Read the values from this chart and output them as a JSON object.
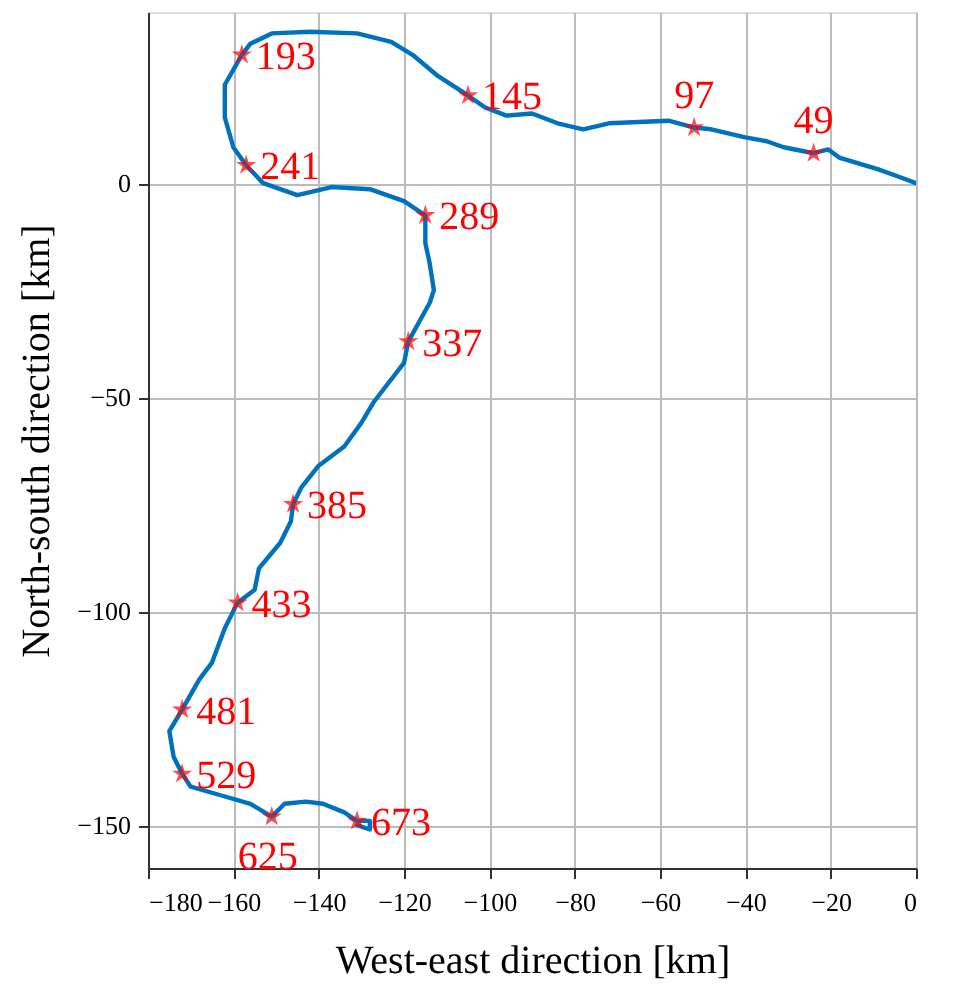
{
  "chart_data": {
    "type": "line",
    "xlabel": "West-east direction [km]",
    "ylabel": "North-south direction [km]",
    "xlim": [
      -180,
      0
    ],
    "xticks": [
      -180,
      -160,
      -140,
      -120,
      -100,
      -80,
      -60,
      -40,
      -20,
      0
    ],
    "ylim": [
      -160,
      40
    ],
    "yticks": [
      -150,
      -100,
      -50,
      0
    ],
    "grid": true,
    "series": [
      {
        "color": "#0072bd",
        "line_style": "solid",
        "marker": "none",
        "x": [
          0,
          -3.7,
          -9,
          -18,
          -20.6,
          -24,
          -31,
          -35,
          -40,
          -48,
          -52,
          -58,
          -72,
          -78,
          -84,
          -90,
          -96,
          -101,
          -105,
          -112,
          -118,
          -123,
          -131,
          -142,
          -151,
          -156,
          -158,
          -162,
          -162,
          -160,
          -157,
          -153,
          -145,
          -137,
          -128,
          -120,
          -115,
          -115,
          -114,
          -113,
          -114,
          -119,
          -120,
          -127,
          -130,
          -134,
          -140,
          -144,
          -146,
          -146.5,
          -149,
          -154,
          -155,
          -159,
          -162,
          -165,
          -168,
          -172,
          -175,
          -174,
          -172,
          -170,
          -163,
          -156,
          -151,
          -148,
          -143,
          -139,
          -134,
          -131,
          -128,
          -128,
          -131
        ],
        "values": [
          0,
          1.4,
          3.3,
          6,
          7.9,
          7,
          8.4,
          9.8,
          10.7,
          12.6,
          13,
          14.6,
          14,
          12.6,
          14,
          16.3,
          15.8,
          17.7,
          20.5,
          25,
          30,
          33,
          35,
          35.4,
          35,
          32.6,
          30,
          23,
          15.4,
          8.4,
          4.2,
          0,
          -2.8,
          -0.9,
          -1.4,
          -4.2,
          -7.5,
          -14,
          -18.6,
          -25,
          -28,
          -37,
          -42,
          -51,
          -56,
          -61.5,
          -66,
          -71,
          -75,
          -79,
          -84,
          -90,
          -95,
          -98,
          -104,
          -112,
          -116,
          -123,
          -128,
          -134,
          -138,
          -141,
          -143,
          -145,
          -148,
          -145,
          -144.5,
          -145,
          -147,
          -149,
          -149,
          -151,
          -150
        ]
      },
      {
        "type": "scatter",
        "color": "#ff0000",
        "marker": "star",
        "x": [
          -24,
          -52,
          -105,
          -158,
          -157,
          -115,
          -119,
          -146,
          -159,
          -172,
          -172,
          -151,
          -131
        ],
        "values": [
          7,
          13,
          20.5,
          30,
          4.2,
          -7.5,
          -37,
          -75,
          -98,
          -123,
          -138,
          -148,
          -149
        ]
      }
    ],
    "annotations": [
      {
        "text": "49",
        "x": -24,
        "y": 7
      },
      {
        "text": "97",
        "x": -52,
        "y": 13
      },
      {
        "text": "145",
        "x": -105,
        "y": 20.5
      },
      {
        "text": "193",
        "x": -158,
        "y": 30
      },
      {
        "text": "241",
        "x": -157,
        "y": 4.2
      },
      {
        "text": "289",
        "x": -115,
        "y": -7.5
      },
      {
        "text": "337",
        "x": -119,
        "y": -37
      },
      {
        "text": "385",
        "x": -146,
        "y": -75
      },
      {
        "text": "433",
        "x": -159,
        "y": -98
      },
      {
        "text": "481",
        "x": -172,
        "y": -123
      },
      {
        "text": "529",
        "x": -172,
        "y": -138
      },
      {
        "text": "625",
        "x": -151,
        "y": -148
      },
      {
        "text": "673",
        "x": -131,
        "y": -149
      }
    ]
  }
}
